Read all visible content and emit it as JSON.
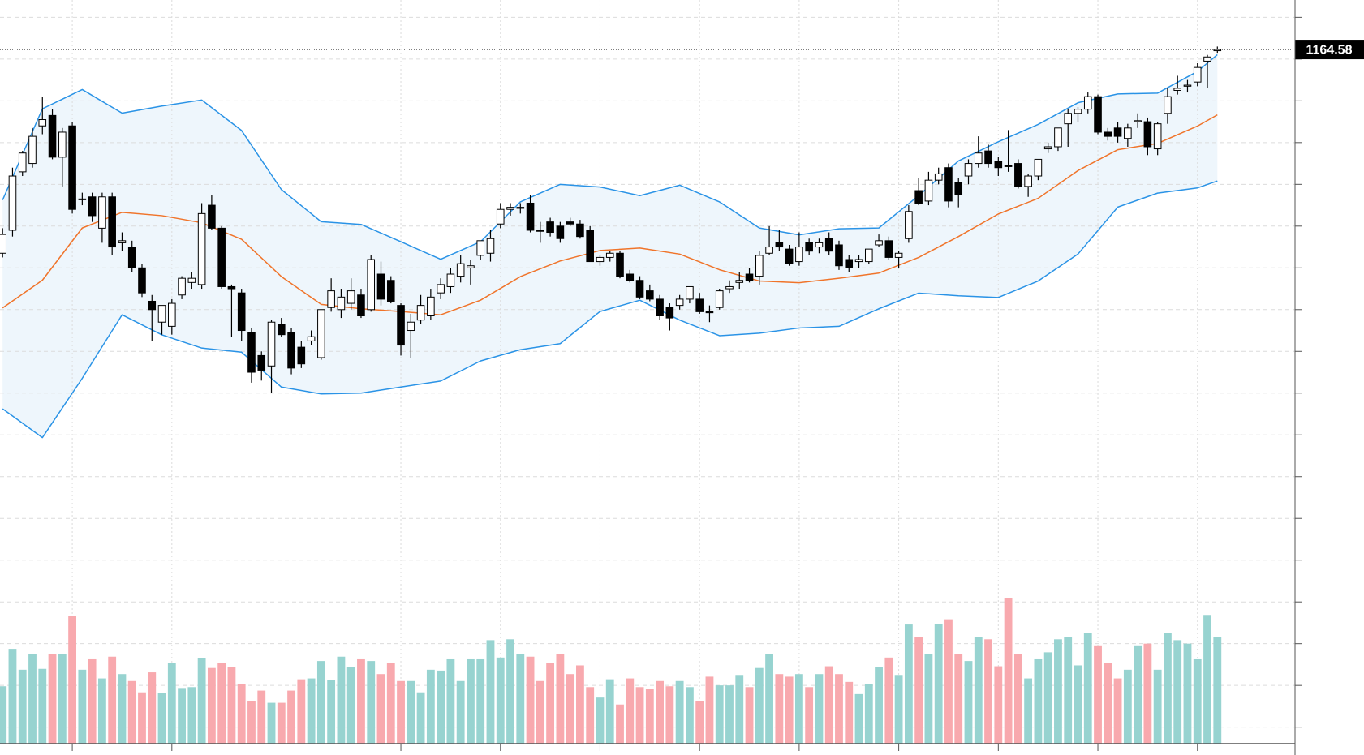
{
  "chart_data": {
    "type": "candlestick",
    "open": [
      1067,
      1078,
      1106,
      1110,
      1128,
      1133,
      1113,
      1128,
      1093,
      1094,
      1079,
      1094,
      1072,
      1070,
      1060,
      1044,
      1034,
      1032,
      1047,
      1053,
      1052,
      1090,
      1079,
      1051,
      1048,
      1029,
      1018,
      1013,
      1033,
      1029,
      1022,
      1025,
      1017,
      1041,
      1040,
      1043,
      1047,
      1040,
      1057,
      1054,
      1042,
      1030,
      1035,
      1037,
      1048,
      1051,
      1056,
      1060,
      1066,
      1067,
      1081,
      1088,
      1088.5,
      1091,
      1078,
      1082,
      1080,
      1082,
      1081,
      1078,
      1063,
      1065,
      1067,
      1057,
      1054,
      1049,
      1045,
      1041,
      1042,
      1045,
      1045,
      1039,
      1041,
      1050,
      1053,
      1057,
      1056,
      1067,
      1072,
      1069,
      1063,
      1072,
      1070,
      1074,
      1071,
      1064,
      1063,
      1063,
      1071,
      1073,
      1065,
      1074,
      1097,
      1092,
      1102,
      1108,
      1101,
      1104,
      1110,
      1116,
      1111,
      1109,
      1110,
      1099,
      1104,
      1117,
      1118,
      1129,
      1134,
      1136,
      1142,
      1125,
      1127,
      1122,
      1130,
      1130,
      1117,
      1134,
      1145,
      1147,
      1149,
      1159,
      1164
    ],
    "high": [
      1079,
      1108,
      1116,
      1127,
      1142,
      1136,
      1127,
      1130,
      1096,
      1096,
      1096,
      1096,
      1077,
      1073,
      1062,
      1047,
      1042,
      1045,
      1056,
      1058,
      1091,
      1095,
      1080,
      1052,
      1050,
      1031,
      1020,
      1035,
      1036,
      1031,
      1025,
      1030,
      1040,
      1055,
      1050,
      1055,
      1050,
      1066,
      1063,
      1056,
      1043,
      1038,
      1047,
      1050,
      1055,
      1060,
      1066,
      1064,
      1073,
      1078,
      1091,
      1091,
      1091,
      1095,
      1082,
      1084,
      1082,
      1084,
      1083,
      1080,
      1066,
      1068,
      1068,
      1059,
      1056,
      1052,
      1047,
      1043,
      1047,
      1051,
      1048,
      1042,
      1050,
      1054,
      1058,
      1060,
      1068,
      1080,
      1078,
      1071,
      1077,
      1074,
      1074,
      1077,
      1073,
      1066,
      1066,
      1069,
      1076,
      1075,
      1068,
      1090,
      1103,
      1106,
      1108,
      1110,
      1103,
      1112,
      1123,
      1119,
      1113,
      1126,
      1112,
      1105,
      1112,
      1120,
      1127,
      1136,
      1137,
      1144,
      1143,
      1127,
      1130,
      1129,
      1134,
      1132,
      1130,
      1146,
      1152,
      1150,
      1158,
      1162,
      1166
    ],
    "low": [
      1065,
      1075,
      1104,
      1108,
      1124,
      1112,
      1099,
      1086,
      1090,
      1082,
      1072,
      1066,
      1068,
      1058,
      1046,
      1025,
      1028,
      1028,
      1045,
      1050,
      1050,
      1078,
      1050,
      1027,
      1025,
      1005,
      1006,
      1000,
      1027,
      1009,
      1012,
      1023,
      1016,
      1039,
      1036,
      1040,
      1036,
      1039,
      1042,
      1043,
      1018,
      1017,
      1033,
      1035,
      1045,
      1048,
      1053,
      1052,
      1064,
      1063,
      1079,
      1085,
      1086,
      1077,
      1072,
      1075,
      1072,
      1080,
      1074,
      1063,
      1061,
      1063,
      1055,
      1053,
      1045,
      1044,
      1035,
      1030,
      1040,
      1043,
      1038,
      1034,
      1040,
      1048,
      1050,
      1053,
      1052,
      1066,
      1068,
      1061,
      1061,
      1066,
      1067,
      1066,
      1059,
      1058,
      1060,
      1062,
      1070,
      1064,
      1060,
      1072,
      1090,
      1090,
      1100,
      1089,
      1089,
      1100,
      1108,
      1108,
      1104,
      1106,
      1098,
      1094,
      1102,
      1115,
      1116,
      1118,
      1130,
      1134,
      1124,
      1121,
      1120,
      1118,
      1127,
      1114,
      1114,
      1129,
      1143,
      1144,
      1147,
      1146,
      1163
    ],
    "close": [
      1076,
      1104,
      1115,
      1123,
      1131,
      1113,
      1125,
      1088,
      1093,
      1085,
      1094,
      1070,
      1073,
      1060,
      1048,
      1040,
      1042,
      1043,
      1055,
      1055,
      1086,
      1079,
      1051,
      1050,
      1030,
      1010,
      1011,
      1034,
      1028,
      1012,
      1014,
      1027,
      1040,
      1049,
      1046,
      1049,
      1037,
      1064,
      1045,
      1044,
      1023,
      1034,
      1042,
      1046,
      1052,
      1057,
      1062,
      1061,
      1073,
      1074,
      1088,
      1089,
      1089,
      1078,
      1077.5,
      1077,
      1074,
      1081,
      1075,
      1063,
      1065,
      1067,
      1056,
      1054,
      1046,
      1045,
      1037,
      1036,
      1045,
      1051,
      1039,
      1038.5,
      1049,
      1051,
      1054,
      1054,
      1066,
      1070,
      1070,
      1062,
      1070,
      1068,
      1072,
      1068,
      1061,
      1060,
      1064,
      1069,
      1073,
      1065,
      1067,
      1087,
      1091,
      1102,
      1105,
      1092,
      1095,
      1110,
      1115,
      1110,
      1108,
      1108.5,
      1099,
      1104,
      1112,
      1118,
      1127,
      1134,
      1136,
      1142,
      1125,
      1123,
      1123,
      1127,
      1130.5,
      1118,
      1129,
      1142,
      1146,
      1147.5,
      1156,
      1161,
      1164.58
    ],
    "volume": [
      66,
      109,
      85,
      103,
      86,
      103,
      103,
      147,
      85,
      97,
      75,
      100,
      80,
      72,
      59,
      82,
      58,
      93,
      64,
      65,
      98,
      87,
      93,
      88,
      69,
      49,
      61,
      47,
      47,
      61,
      74,
      75,
      95,
      73,
      100,
      88,
      97,
      95,
      80,
      93,
      72,
      72,
      59,
      85,
      84,
      97,
      72,
      97,
      97,
      119,
      99,
      120,
      103,
      100,
      72,
      93,
      103,
      80,
      90,
      65,
      53,
      74,
      45,
      75,
      65,
      63,
      72,
      66,
      72,
      65,
      49,
      77,
      67,
      67,
      79,
      65,
      87,
      103,
      80,
      77,
      80,
      65,
      80,
      89,
      80,
      71,
      57,
      69,
      88,
      99,
      79,
      137,
      123,
      103,
      138,
      143,
      103,
      95,
      123,
      120,
      89,
      167,
      103,
      75,
      97,
      105,
      120,
      123,
      90,
      127,
      113,
      93,
      75,
      85,
      113,
      115,
      85,
      127,
      119,
      115,
      97,
      148,
      123
    ],
    "up_color": "#ffffff",
    "down_color": "#000000",
    "volume_up_color": "#97d3d0",
    "volume_down_color": "#f8a9ae",
    "bands": {
      "x": [
        0,
        4,
        8,
        12,
        16,
        20,
        24,
        28,
        32,
        36,
        40,
        44,
        48,
        52,
        56,
        60,
        64,
        68,
        72,
        76,
        80,
        84,
        88,
        92,
        96,
        100,
        104,
        108,
        112,
        116,
        120,
        122
      ],
      "upper": [
        1092.5,
        1136.2,
        1145.4,
        1134.1,
        1137.5,
        1140.4,
        1125.8,
        1097.5,
        1082.1,
        1080.8,
        1072.5,
        1064.1,
        1072.5,
        1091.6,
        1100.0,
        1098.7,
        1094.6,
        1099.6,
        1091.6,
        1079.1,
        1075.8,
        1078.7,
        1079.1,
        1094.6,
        1111.2,
        1120.4,
        1128.7,
        1139.1,
        1143.3,
        1143.7,
        1154.1,
        1162.1
      ],
      "middle": [
        1040.8,
        1054.1,
        1079.1,
        1086.6,
        1085.0,
        1081.6,
        1073.7,
        1055.8,
        1042.5,
        1040.4,
        1039.1,
        1037.5,
        1044.5,
        1055.8,
        1063.3,
        1068.3,
        1069.5,
        1066.6,
        1059.1,
        1053.7,
        1052.9,
        1055.0,
        1057.5,
        1065.0,
        1075.0,
        1085.8,
        1093.3,
        1106.6,
        1116.6,
        1119.6,
        1127.9,
        1133.3
      ],
      "lower": [
        992.5,
        978.7,
        1007.1,
        1037.5,
        1027.9,
        1021.6,
        1019.6,
        1002.9,
        999.6,
        1000.0,
        1002.9,
        1005.8,
        1015.4,
        1020.8,
        1023.7,
        1039.1,
        1044.5,
        1035.0,
        1027.5,
        1028.7,
        1031.2,
        1032.0,
        1040.4,
        1047.9,
        1046.6,
        1045.8,
        1053.7,
        1066.6,
        1089.1,
        1095.8,
        1098.3,
        1101.6
      ],
      "band_color": "#2a93e6",
      "middle_color": "#f0742a",
      "fill": "#eef6fc"
    },
    "last_price": 1164.58,
    "ylim": [
      832.1,
      1188.3
    ],
    "yticks": [
      1180,
      1160,
      1140,
      1120,
      1100,
      1080,
      1060,
      1040,
      1020,
      1000,
      980,
      960,
      940,
      920,
      900,
      880,
      860,
      840
    ],
    "xlim": [
      -0.26,
      129.8
    ],
    "xticks": [
      7,
      17,
      40,
      50,
      60,
      70,
      80,
      90,
      100,
      110,
      120
    ],
    "volume_lim": [
      0,
      855
    ],
    "grid": true
  }
}
